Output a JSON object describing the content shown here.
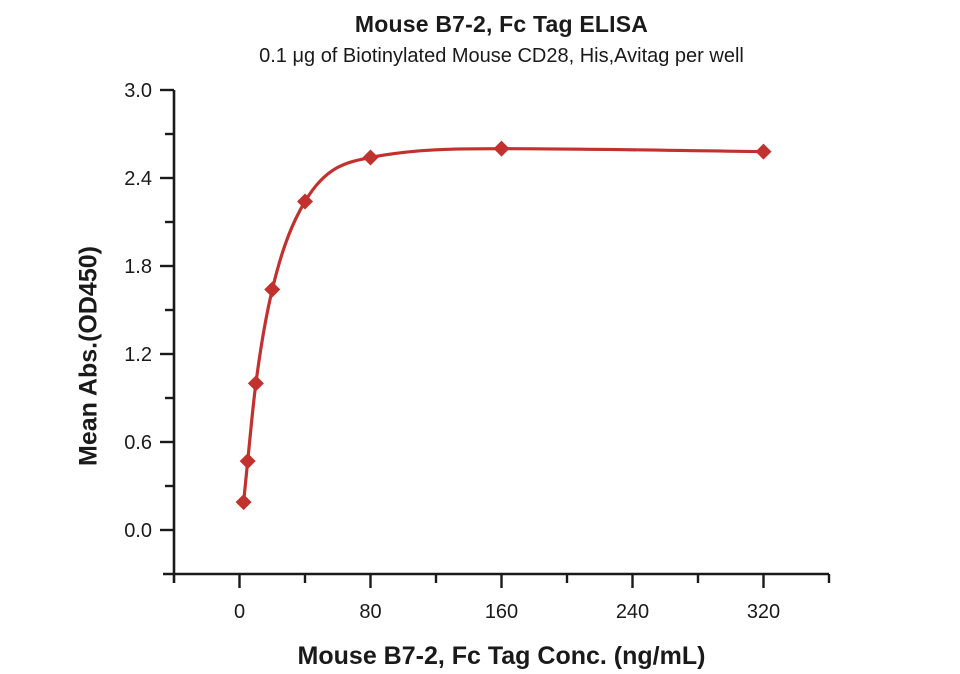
{
  "chart_data": {
    "type": "line",
    "title": "Mouse B7-2, Fc Tag ELISA",
    "subtitle": "0.1 μg of Biotinylated Mouse CD28, His,Avitag per well",
    "xlabel": "Mouse B7-2, Fc Tag Conc. (ng/mL)",
    "ylabel": "Mean Abs.(OD450)",
    "series": [
      {
        "name": "Mouse B7-2, Fc Tag",
        "x": [
          2.5,
          5,
          10,
          20,
          40,
          80,
          160,
          320
        ],
        "y": [
          0.19,
          0.47,
          1.0,
          1.64,
          2.24,
          2.54,
          2.6,
          2.58
        ],
        "marker": "diamond",
        "color": "#C2312E"
      }
    ],
    "xlim": [
      -40,
      360
    ],
    "ylim": [
      -0.3,
      3.0
    ],
    "x_ticks_major": [
      0,
      80,
      160,
      240,
      320
    ],
    "x_ticks_minor": [
      40,
      120,
      200,
      280,
      360
    ],
    "y_ticks_major": [
      0.0,
      0.6,
      1.2,
      1.8,
      2.4,
      3.0
    ],
    "y_ticks_minor": [
      0.3,
      0.9,
      1.5,
      2.1,
      2.7
    ],
    "grid": false,
    "legend": false,
    "axis_color": "#1a1a1a"
  }
}
